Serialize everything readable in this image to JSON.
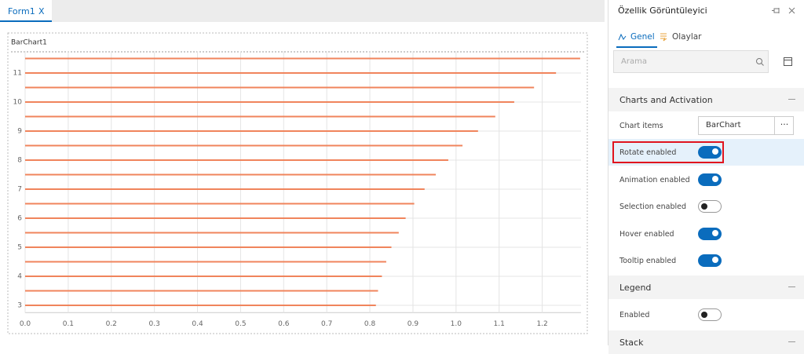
{
  "tab": {
    "title": "Form1",
    "close": "X"
  },
  "chart_data": {
    "type": "bar",
    "orientation": "horizontal",
    "title": "BarChart1",
    "categories": [
      "3",
      null,
      "4",
      null,
      "5",
      null,
      "6",
      null,
      "7",
      null,
      "8",
      null,
      "9",
      null,
      "10",
      null,
      "11",
      null
    ],
    "values": [
      0.814,
      0.819,
      0.828,
      0.838,
      0.85,
      0.867,
      0.883,
      0.903,
      0.927,
      0.953,
      0.982,
      1.015,
      1.051,
      1.091,
      1.135,
      1.181,
      1.232,
      1.288
    ],
    "color": "#f0845c",
    "xlim": [
      0,
      1.29
    ],
    "xticks": [
      {
        "value": 0,
        "label": "0.0"
      },
      0.1,
      0.2,
      0.3,
      0.4,
      0.5,
      0.6,
      0.7,
      0.8,
      0.9,
      {
        "value": 1,
        "label": "1.0"
      },
      1.1,
      1.2
    ],
    "grid": true
  },
  "panel": {
    "title": "Özellik Görüntüleyici",
    "tabs": [
      "Genel",
      "Olaylar"
    ],
    "search_placeholder": "Arama",
    "sections": [
      {
        "title": "Charts and Activation",
        "rows": [
          {
            "label": "Chart items",
            "value": "BarChart",
            "button": "···"
          },
          {
            "label": "Rotate enabled",
            "on": true,
            "highlighted": true
          },
          {
            "label": "Animation enabled",
            "on": true
          },
          {
            "label": "Selection enabled",
            "on": false
          },
          {
            "label": "Hover enabled",
            "on": true
          },
          {
            "label": "Tooltip enabled",
            "on": true
          }
        ]
      },
      {
        "title": "Legend",
        "rows": [
          {
            "label": "Enabled",
            "on": false
          }
        ]
      },
      {
        "title": "Stack",
        "rows": []
      }
    ]
  }
}
